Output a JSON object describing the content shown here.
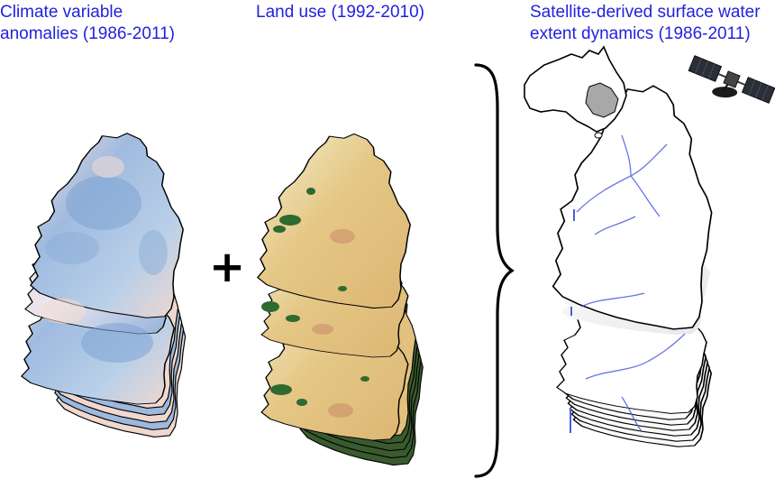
{
  "panels": [
    {
      "id": "climate",
      "title": "Climate variable\nanomalies (1986-2011)"
    },
    {
      "id": "landuse",
      "title": "Land use (1992-2010)"
    },
    {
      "id": "water",
      "title": "Satellite-derived surface water\nextent dynamics (1986-2011)"
    }
  ],
  "operator": "+",
  "colors": {
    "title_text": "#2222dd",
    "climate_blue": "#8fb0d8",
    "climate_pink": "#f2dcd4",
    "landuse_tan": "#e2c07e",
    "landuse_cream": "#f4efcf",
    "landuse_green": "#2f6a2f",
    "water_blue": "#4b5ee0",
    "australia_highlight": "#a8a8a8"
  },
  "icons": [
    "australia-map-icon",
    "satellite-icon",
    "right-brace-icon",
    "plus-icon"
  ]
}
